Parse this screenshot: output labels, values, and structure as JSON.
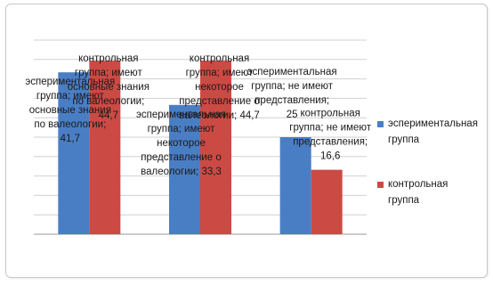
{
  "chart_data": {
    "type": "bar",
    "categories": [
      "имеют основные знания по валеологии",
      "имеют некоторое представление о валеологии",
      "не имеют представления"
    ],
    "series": [
      {
        "name": "эспериментальная группа",
        "color": "#4a7ec4",
        "values": [
          41.7,
          33.3,
          25
        ]
      },
      {
        "name": "контрольная группа",
        "color": "#cc4a44",
        "values": [
          44.7,
          44.7,
          16.6
        ]
      }
    ],
    "data_labels": [
      [
        "эспериментальная группа; имеют основные знания по валеологии; 41,7",
        "эспериментальная группа; имеют некоторое представление о валеологии; 33,3",
        "эспериментальная группа; не имеют представления; 25"
      ],
      [
        "контрольная группа; имеют основные знания по валеологии; 44,7",
        "контрольная группа; имеют некоторое представление о валеологии; 44,7",
        "контрольная группа; не имеют представления; 16,6"
      ]
    ],
    "ylim": [
      0,
      50
    ],
    "grid": true,
    "legend_position": "right"
  }
}
